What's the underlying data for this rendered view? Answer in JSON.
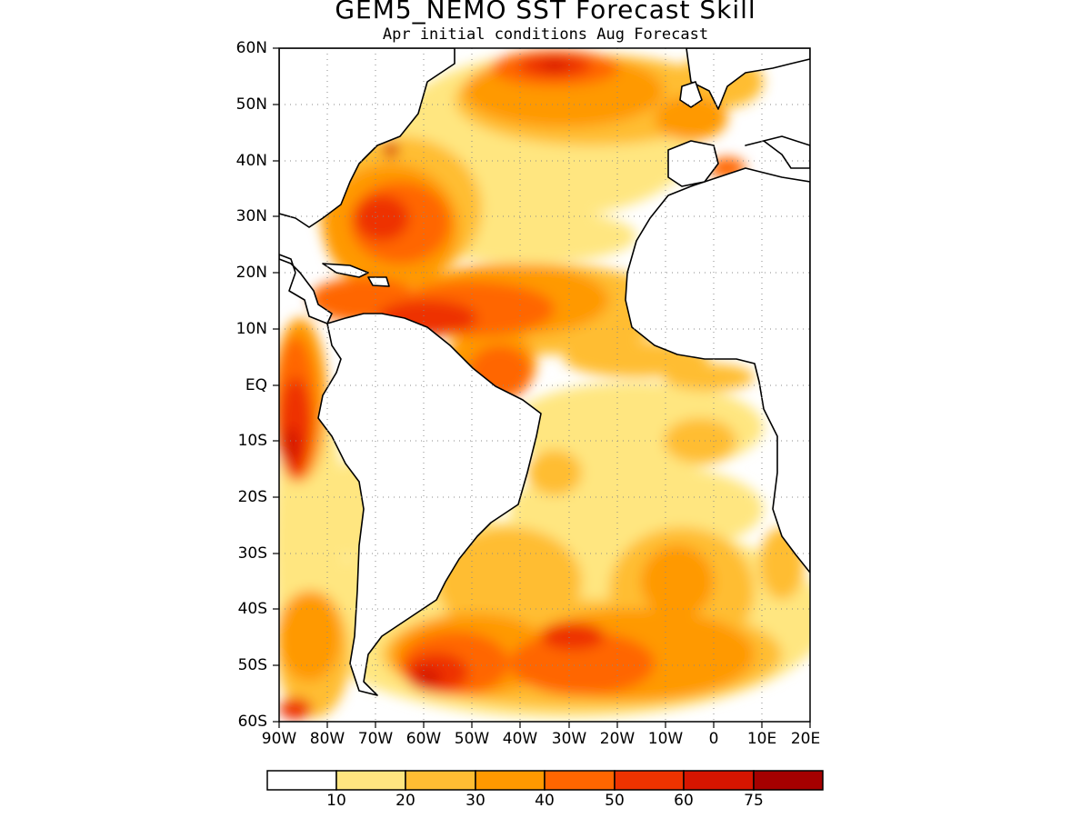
{
  "title": "GEM5_NEMO SST Forecast Skill",
  "subtitle": "Apr initial conditions  Aug Forecast",
  "axes": {
    "lat_labels": [
      "60N",
      "50N",
      "40N",
      "30N",
      "20N",
      "10N",
      "EQ",
      "10S",
      "20S",
      "30S",
      "40S",
      "50S",
      "60S"
    ],
    "lon_labels": [
      "90W",
      "80W",
      "70W",
      "60W",
      "50W",
      "40W",
      "30W",
      "20W",
      "10W",
      "0",
      "10E",
      "20E"
    ],
    "lat_range": [
      -60,
      60
    ],
    "lon_range": [
      -90,
      20
    ],
    "grid": "dotted"
  },
  "colorbar": {
    "labels": [
      "10",
      "20",
      "30",
      "40",
      "50",
      "60",
      "75"
    ],
    "colors": [
      "#ffffff",
      "#ffe680",
      "#ffbd33",
      "#ff9900",
      "#ff6600",
      "#ee3300",
      "#d61500",
      "#a50000"
    ]
  },
  "map_colors": {
    "land": "#ffffff",
    "coastline": "#000000"
  }
}
